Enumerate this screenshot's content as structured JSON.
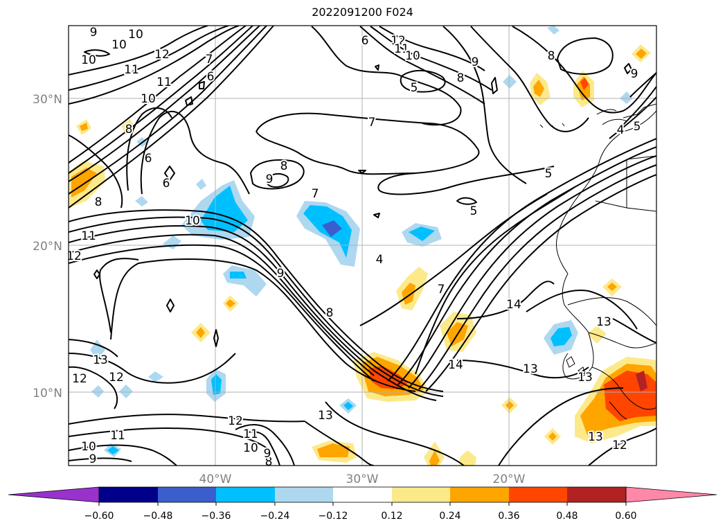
{
  "title": "2022091200 F024",
  "map": {
    "lat_labels": [
      "30°N",
      "20°N",
      "10°N"
    ],
    "lon_labels": [
      "40°W",
      "30°W",
      "20°W"
    ],
    "contour_labels": [
      "9",
      "10",
      "10",
      "12",
      "10",
      "11",
      "11",
      "10",
      "7",
      "6",
      "8",
      "6",
      "8",
      "6",
      "9",
      "8",
      "7",
      "5",
      "6",
      "8",
      "9",
      "12",
      "11",
      "10",
      "5",
      "7",
      "5",
      "5",
      "4",
      "10",
      "11",
      "12",
      "9",
      "8",
      "4",
      "7",
      "8",
      "14",
      "13",
      "14",
      "13",
      "13",
      "12",
      "13",
      "12",
      "11",
      "10",
      "9",
      "8",
      "11",
      "10",
      "12",
      "9",
      "13",
      "13",
      "12",
      "9"
    ]
  },
  "colorbar": {
    "ticks": [
      "−0.60",
      "−0.48",
      "−0.36",
      "−0.24",
      "−0.12",
      "0.12",
      "0.24",
      "0.36",
      "0.48",
      "0.60"
    ],
    "colors": {
      "lt_-0.60": "#9932cc",
      "-0.60_-0.48": "#00008b",
      "-0.48_-0.36": "#3a5fcd",
      "-0.36_-0.24": "#00bfff",
      "-0.24_-0.12": "#add8f0",
      "-0.12_0.12": "#ffffff",
      "0.12_0.24": "#fce98a",
      "0.24_0.36": "#ffa500",
      "0.36_0.48": "#ff4500",
      "0.48_0.60": "#b22222",
      "gt_0.60": "#ff88a8"
    }
  }
}
